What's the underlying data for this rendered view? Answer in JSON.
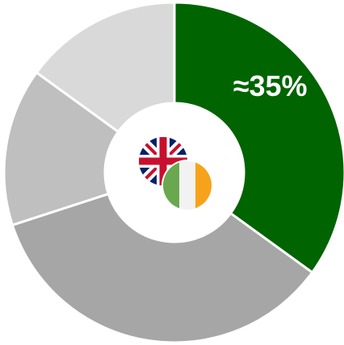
{
  "chart_data": {
    "type": "donut",
    "categories": [
      null,
      null,
      null,
      null
    ],
    "values": [
      35,
      35,
      15,
      15
    ],
    "value_labels": [
      "≈35%",
      null,
      null,
      null
    ],
    "colors": [
      "#006400",
      "#a6a6a6",
      "#bfbfbf",
      "#d9d9d9"
    ]
  }
}
